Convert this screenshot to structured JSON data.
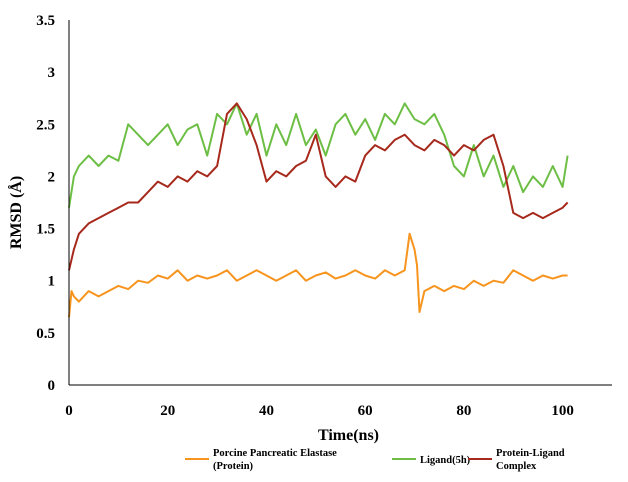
{
  "chart_data": {
    "type": "line",
    "title": "",
    "xlabel": "Time(ns)",
    "ylabel": "RMSD (Å)",
    "xlim": [
      0,
      110
    ],
    "ylim": [
      0,
      3.5
    ],
    "x_ticks": [
      "0",
      "20",
      "40",
      "60",
      "80",
      "100"
    ],
    "y_ticks": [
      "0",
      "0.5",
      "1",
      "1.5",
      "2",
      "2.5",
      "3",
      "3.5"
    ],
    "grid": false,
    "legend_position": "bottom",
    "series": [
      {
        "name_lines": [
          "Porcine Pancreatic Elastase",
          "(Protein)"
        ],
        "color": "#F7941D",
        "x": [
          0,
          0.5,
          1,
          2,
          4,
          6,
          8,
          10,
          12,
          14,
          16,
          18,
          20,
          22,
          24,
          26,
          28,
          30,
          32,
          34,
          36,
          38,
          40,
          42,
          44,
          46,
          48,
          50,
          52,
          54,
          56,
          58,
          60,
          62,
          64,
          66,
          68,
          69,
          70,
          70.5,
          71,
          72,
          74,
          76,
          78,
          80,
          82,
          84,
          86,
          88,
          90,
          92,
          94,
          96,
          98,
          100,
          101
        ],
        "values": [
          0.65,
          0.9,
          0.85,
          0.8,
          0.9,
          0.85,
          0.9,
          0.95,
          0.92,
          1.0,
          0.98,
          1.05,
          1.02,
          1.1,
          1.0,
          1.05,
          1.02,
          1.05,
          1.1,
          1.0,
          1.05,
          1.1,
          1.05,
          1.0,
          1.05,
          1.1,
          1.0,
          1.05,
          1.08,
          1.02,
          1.05,
          1.1,
          1.05,
          1.02,
          1.1,
          1.05,
          1.1,
          1.45,
          1.3,
          1.15,
          0.7,
          0.9,
          0.95,
          0.9,
          0.95,
          0.92,
          1.0,
          0.95,
          1.0,
          0.98,
          1.1,
          1.05,
          1.0,
          1.05,
          1.02,
          1.05,
          1.05
        ]
      },
      {
        "name_lines": [
          "Ligand(5h)"
        ],
        "color": "#6DBE45",
        "x": [
          0,
          1,
          2,
          4,
          6,
          8,
          10,
          12,
          14,
          16,
          18,
          20,
          22,
          24,
          26,
          28,
          30,
          32,
          34,
          36,
          38,
          40,
          42,
          44,
          46,
          48,
          50,
          52,
          54,
          56,
          58,
          60,
          62,
          64,
          66,
          68,
          70,
          72,
          74,
          76,
          78,
          80,
          82,
          84,
          86,
          88,
          90,
          92,
          94,
          96,
          98,
          100,
          101
        ],
        "values": [
          1.7,
          2.0,
          2.1,
          2.2,
          2.1,
          2.2,
          2.15,
          2.5,
          2.4,
          2.3,
          2.4,
          2.5,
          2.3,
          2.45,
          2.5,
          2.2,
          2.6,
          2.5,
          2.7,
          2.4,
          2.6,
          2.2,
          2.5,
          2.3,
          2.6,
          2.3,
          2.45,
          2.2,
          2.5,
          2.6,
          2.4,
          2.55,
          2.35,
          2.6,
          2.5,
          2.7,
          2.55,
          2.5,
          2.6,
          2.4,
          2.1,
          2.0,
          2.3,
          2.0,
          2.2,
          1.9,
          2.1,
          1.85,
          2.0,
          1.9,
          2.1,
          1.9,
          2.2
        ]
      },
      {
        "name_lines": [
          "Protein-Ligand",
          "Complex"
        ],
        "color": "#A6291C",
        "x": [
          0,
          1,
          2,
          4,
          6,
          8,
          10,
          12,
          14,
          16,
          18,
          20,
          22,
          24,
          26,
          28,
          30,
          32,
          34,
          36,
          38,
          40,
          42,
          44,
          46,
          48,
          50,
          52,
          54,
          56,
          58,
          60,
          62,
          64,
          66,
          68,
          70,
          72,
          74,
          76,
          78,
          80,
          82,
          84,
          86,
          88,
          90,
          92,
          94,
          96,
          98,
          100,
          101
        ],
        "values": [
          1.1,
          1.3,
          1.45,
          1.55,
          1.6,
          1.65,
          1.7,
          1.75,
          1.75,
          1.85,
          1.95,
          1.9,
          2.0,
          1.95,
          2.05,
          2.0,
          2.1,
          2.6,
          2.7,
          2.55,
          2.3,
          1.95,
          2.05,
          2.0,
          2.1,
          2.15,
          2.4,
          2.0,
          1.9,
          2.0,
          1.95,
          2.2,
          2.3,
          2.25,
          2.35,
          2.4,
          2.3,
          2.25,
          2.35,
          2.3,
          2.2,
          2.3,
          2.25,
          2.35,
          2.4,
          2.1,
          1.65,
          1.6,
          1.65,
          1.6,
          1.65,
          1.7,
          1.75
        ]
      }
    ]
  }
}
